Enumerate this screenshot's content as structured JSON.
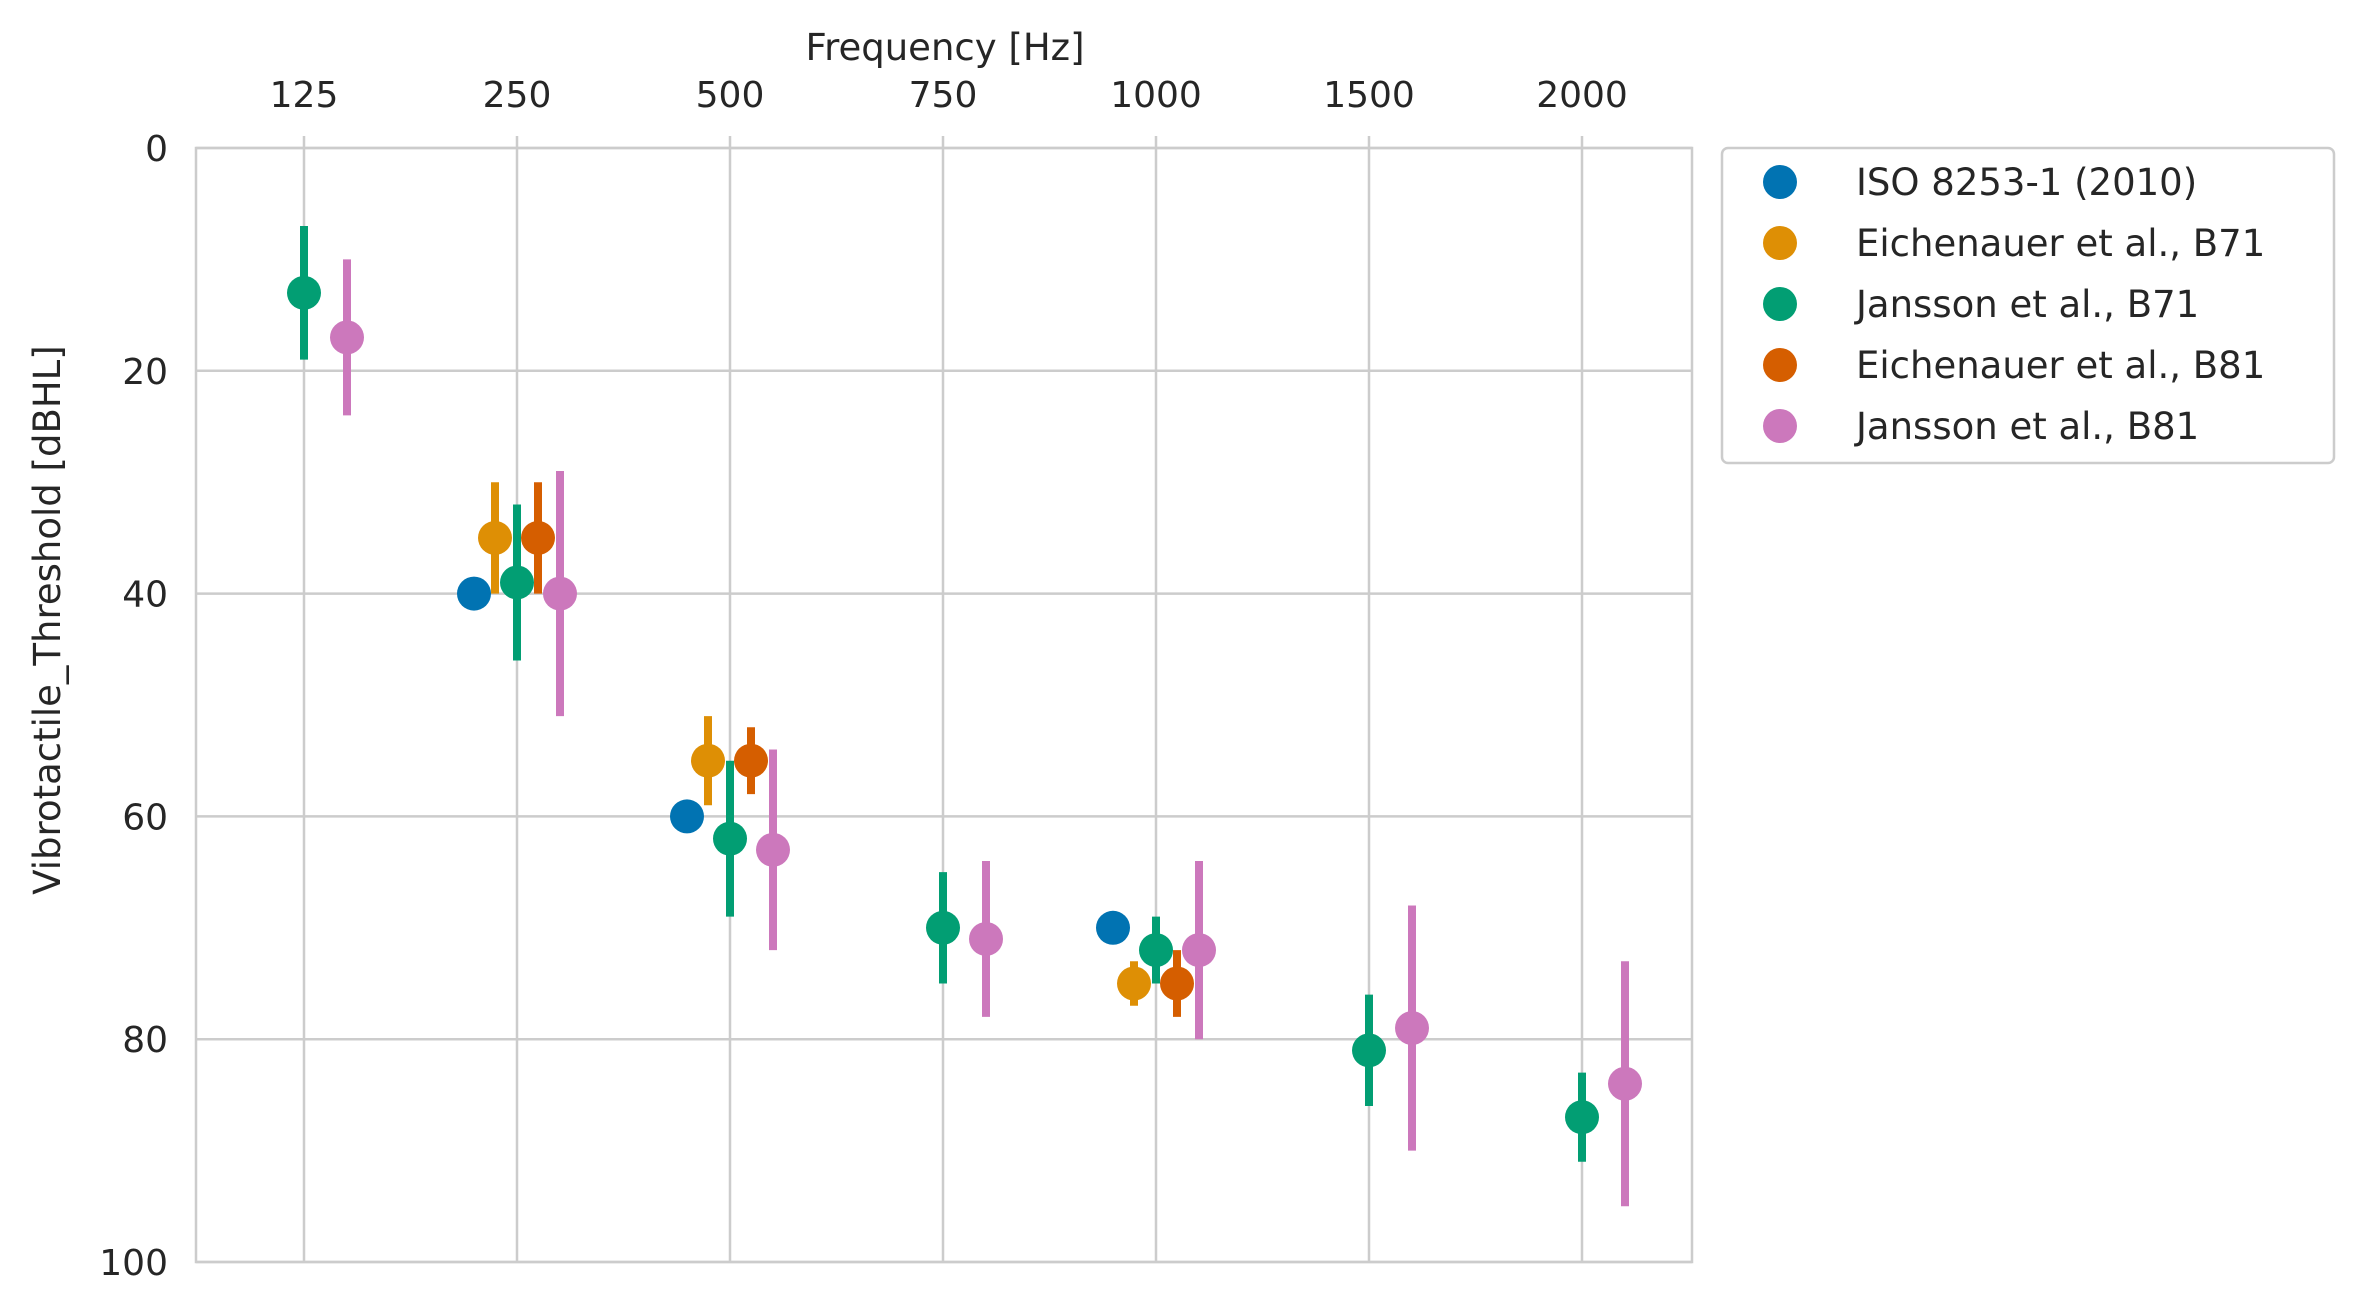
{
  "chart_data": {
    "type": "scatter",
    "xlabel": "Frequency [Hz]",
    "ylabel": "Vibrotactile_Threshold [dBHL]",
    "categories": [
      "125",
      "250",
      "500",
      "750",
      "1000",
      "1500",
      "2000"
    ],
    "x_axis_position": "top",
    "y_inverted": true,
    "ylim": [
      0,
      100
    ],
    "y_ticks": [
      "0",
      "20",
      "40",
      "60",
      "80",
      "100"
    ],
    "grid": true,
    "legend_position": "outside-right",
    "series": [
      {
        "name": "ISO 8253-1 (2010)",
        "color": "#0173b2",
        "points": [
          {
            "x": "250",
            "y": 40,
            "err_low": null,
            "err_high": null
          },
          {
            "x": "500",
            "y": 60,
            "err_low": null,
            "err_high": null
          },
          {
            "x": "1000",
            "y": 70,
            "err_low": null,
            "err_high": null
          }
        ]
      },
      {
        "name": "Eichenauer et al., B71",
        "color": "#de8f05",
        "points": [
          {
            "x": "250",
            "y": 35,
            "err_low": 30,
            "err_high": 40
          },
          {
            "x": "500",
            "y": 55,
            "err_low": 51,
            "err_high": 59
          },
          {
            "x": "1000",
            "y": 75,
            "err_low": 73,
            "err_high": 77
          }
        ]
      },
      {
        "name": "Jansson et al., B71",
        "color": "#029e73",
        "points": [
          {
            "x": "125",
            "y": 13,
            "err_low": 7,
            "err_high": 19
          },
          {
            "x": "250",
            "y": 39,
            "err_low": 32,
            "err_high": 46
          },
          {
            "x": "500",
            "y": 62,
            "err_low": 55,
            "err_high": 69
          },
          {
            "x": "750",
            "y": 70,
            "err_low": 65,
            "err_high": 75
          },
          {
            "x": "1000",
            "y": 72,
            "err_low": 69,
            "err_high": 75
          },
          {
            "x": "1500",
            "y": 81,
            "err_low": 76,
            "err_high": 86
          },
          {
            "x": "2000",
            "y": 87,
            "err_low": 83,
            "err_high": 91
          }
        ]
      },
      {
        "name": "Eichenauer et al., B81",
        "color": "#d55e00",
        "points": [
          {
            "x": "250",
            "y": 35,
            "err_low": 30,
            "err_high": 40
          },
          {
            "x": "500",
            "y": 55,
            "err_low": 52,
            "err_high": 58
          },
          {
            "x": "1000",
            "y": 75,
            "err_low": 72,
            "err_high": 78
          }
        ]
      },
      {
        "name": "Jansson et al., B81",
        "color": "#cc78bc",
        "points": [
          {
            "x": "125",
            "y": 17,
            "err_low": 10,
            "err_high": 24
          },
          {
            "x": "250",
            "y": 40,
            "err_low": 29,
            "err_high": 51
          },
          {
            "x": "500",
            "y": 63,
            "err_low": 54,
            "err_high": 72
          },
          {
            "x": "750",
            "y": 71,
            "err_low": 64,
            "err_high": 78
          },
          {
            "x": "1000",
            "y": 72,
            "err_low": 64,
            "err_high": 80
          },
          {
            "x": "1500",
            "y": 79,
            "err_low": 68,
            "err_high": 90
          },
          {
            "x": "2000",
            "y": 84,
            "err_low": 73,
            "err_high": 95
          }
        ]
      }
    ]
  }
}
